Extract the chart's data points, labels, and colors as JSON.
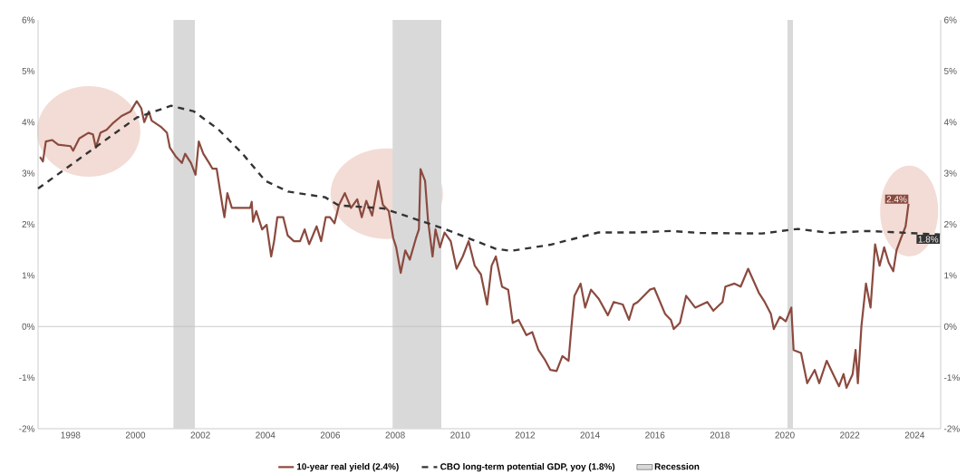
{
  "chart_data": {
    "type": "line",
    "xlim": [
      1997,
      2024.8
    ],
    "ylim": [
      -2,
      6
    ],
    "y2lim": [
      -2,
      6
    ],
    "xticks": [
      1998,
      2000,
      2002,
      2004,
      2006,
      2008,
      2010,
      2012,
      2014,
      2016,
      2018,
      2020,
      2022,
      2024
    ],
    "yticks": [
      {
        "value": -2,
        "label": "-2%"
      },
      {
        "value": -1,
        "label": "-1%"
      },
      {
        "value": 0,
        "label": "0%"
      },
      {
        "value": 1,
        "label": "1%"
      },
      {
        "value": 2,
        "label": "2%"
      },
      {
        "value": 3,
        "label": "3%"
      },
      {
        "value": 4,
        "label": "4%"
      },
      {
        "value": 5,
        "label": "5%"
      },
      {
        "value": 6,
        "label": "6%"
      }
    ],
    "y2ticks": [
      {
        "value": -2,
        "label": "-2%"
      },
      {
        "value": -1,
        "label": "-1%"
      },
      {
        "value": 0,
        "label": "0%"
      },
      {
        "value": 1,
        "label": "1%"
      },
      {
        "value": 2,
        "label": "2%"
      },
      {
        "value": 3,
        "label": "3%"
      },
      {
        "value": 4,
        "label": "4%"
      },
      {
        "value": 5,
        "label": "5%"
      },
      {
        "value": 6,
        "label": "6%"
      }
    ],
    "legend": "bottom",
    "series": [
      {
        "name": "10-year real yield (2.4%)",
        "color": "#8b4a3f",
        "line_style": "solid",
        "x": [
          1997.06,
          1997.15,
          1997.24,
          1997.43,
          1997.62,
          1998.0,
          1998.08,
          1998.27,
          1998.55,
          1998.69,
          1998.78,
          1998.92,
          1999.11,
          1999.29,
          1999.57,
          1999.85,
          2000.04,
          2000.18,
          2000.27,
          2000.41,
          2000.5,
          2000.78,
          2000.97,
          2001.06,
          2001.25,
          2001.43,
          2001.53,
          2001.71,
          2001.85,
          2001.95,
          2002.09,
          2002.27,
          2002.37,
          2002.5,
          2002.69,
          2002.74,
          2002.83,
          2002.97,
          2003.11,
          2003.53,
          2003.58,
          2003.62,
          2003.72,
          2003.9,
          2004.04,
          2004.18,
          2004.27,
          2004.37,
          2004.55,
          2004.69,
          2004.88,
          2005.07,
          2005.21,
          2005.35,
          2005.58,
          2005.72,
          2005.86,
          2005.99,
          2006.13,
          2006.27,
          2006.45,
          2006.64,
          2006.83,
          2006.97,
          2007.11,
          2007.29,
          2007.48,
          2007.62,
          2007.8,
          2007.94,
          2008.03,
          2008.17,
          2008.31,
          2008.45,
          2008.64,
          2008.73,
          2008.78,
          2008.92,
          2009.01,
          2009.15,
          2009.24,
          2009.38,
          2009.52,
          2009.71,
          2009.89,
          2010.08,
          2010.26,
          2010.45,
          2010.64,
          2010.83,
          2010.97,
          2011.1,
          2011.29,
          2011.48,
          2011.62,
          2011.8,
          2012.04,
          2012.22,
          2012.41,
          2012.6,
          2012.78,
          2012.97,
          2013.15,
          2013.34,
          2013.43,
          2013.52,
          2013.71,
          2013.85,
          2014.03,
          2014.27,
          2014.55,
          2014.73,
          2015.01,
          2015.2,
          2015.34,
          2015.47,
          2015.84,
          2015.98,
          2016.31,
          2016.49,
          2016.58,
          2016.77,
          2016.96,
          2017.24,
          2017.61,
          2017.8,
          2018.08,
          2018.17,
          2018.45,
          2018.64,
          2018.87,
          2019.2,
          2019.38,
          2019.57,
          2019.66,
          2019.85,
          2020.03,
          2020.2,
          2020.27,
          2020.5,
          2020.69,
          2020.92,
          2021.06,
          2021.29,
          2021.53,
          2021.67,
          2021.81,
          2021.9,
          2022.09,
          2022.18,
          2022.25,
          2022.36,
          2022.5,
          2022.64,
          2022.78,
          2022.92,
          2023.06,
          2023.2,
          2023.34,
          2023.44,
          2023.58,
          2023.72,
          2023.81
        ],
        "values": [
          3.32,
          3.23,
          3.62,
          3.65,
          3.56,
          3.53,
          3.44,
          3.68,
          3.79,
          3.76,
          3.5,
          3.79,
          3.85,
          3.97,
          4.12,
          4.21,
          4.41,
          4.27,
          4.0,
          4.21,
          4.03,
          3.91,
          3.79,
          3.5,
          3.32,
          3.2,
          3.38,
          3.2,
          2.97,
          3.62,
          3.38,
          3.2,
          3.09,
          3.09,
          2.32,
          2.14,
          2.61,
          2.32,
          2.32,
          2.32,
          2.44,
          2.05,
          2.26,
          1.9,
          1.99,
          1.37,
          1.67,
          2.14,
          2.14,
          1.78,
          1.67,
          1.67,
          1.9,
          1.61,
          1.96,
          1.67,
          2.14,
          2.14,
          2.02,
          2.38,
          2.61,
          2.32,
          2.49,
          2.14,
          2.46,
          2.17,
          2.85,
          2.38,
          2.26,
          1.73,
          1.55,
          1.05,
          1.49,
          1.31,
          1.73,
          1.9,
          3.08,
          2.85,
          2.08,
          1.37,
          1.9,
          1.55,
          1.84,
          1.67,
          1.13,
          1.37,
          1.67,
          1.19,
          1.02,
          0.43,
          1.19,
          1.37,
          0.78,
          0.72,
          0.07,
          0.13,
          -0.17,
          -0.11,
          -0.46,
          -0.64,
          -0.85,
          -0.87,
          -0.58,
          -0.67,
          0.01,
          0.6,
          0.84,
          0.37,
          0.72,
          0.54,
          0.22,
          0.48,
          0.43,
          0.13,
          0.43,
          0.48,
          0.72,
          0.75,
          0.25,
          0.13,
          -0.05,
          0.07,
          0.6,
          0.37,
          0.48,
          0.31,
          0.48,
          0.78,
          0.84,
          0.78,
          1.13,
          0.66,
          0.48,
          0.25,
          -0.05,
          0.19,
          0.1,
          0.37,
          -0.46,
          -0.52,
          -1.11,
          -0.85,
          -1.11,
          -0.67,
          -0.99,
          -1.17,
          -0.93,
          -1.2,
          -0.93,
          -0.46,
          -1.11,
          0.01,
          0.84,
          0.37,
          1.61,
          1.19,
          1.55,
          1.25,
          1.08,
          1.49,
          1.73,
          1.96,
          2.4
        ]
      },
      {
        "name": "CBO long-term potential GDP, yoy (1.8%)",
        "color": "#333333",
        "line_style": "dashed",
        "x": [
          1997.0,
          2000.04,
          2001.1,
          2001.8,
          2002.55,
          2003.3,
          2004.0,
          2004.7,
          2005.84,
          2006.26,
          2007.65,
          2009.52,
          2011.1,
          2011.56,
          2012.78,
          2014.26,
          2015.38,
          2016.5,
          2017.4,
          2019.3,
          2020.4,
          2021.4,
          2022.55,
          2024.78
        ],
        "values": [
          2.7,
          4.09,
          4.32,
          4.21,
          3.86,
          3.38,
          2.85,
          2.64,
          2.53,
          2.37,
          2.31,
          1.91,
          1.52,
          1.48,
          1.6,
          1.84,
          1.84,
          1.87,
          1.83,
          1.82,
          1.91,
          1.83,
          1.87,
          1.8
        ]
      }
    ],
    "bands": [
      {
        "axis": "x",
        "from": 2001.17,
        "to": 2001.83,
        "label": "Recession",
        "color": "#d9d9d9"
      },
      {
        "axis": "x",
        "from": 2007.92,
        "to": 2009.42,
        "color": "#d9d9d9"
      },
      {
        "axis": "x",
        "from": 2020.08,
        "to": 2020.25,
        "color": "#d9d9d9"
      }
    ],
    "ref_lines": [
      {
        "axis": "y",
        "value": 0,
        "color": "#bfbfbf"
      }
    ],
    "annotations": [
      {
        "text": "2.4%",
        "x": 2023.81,
        "y": 2.4
      },
      {
        "text": "1.8%",
        "x": 2024.78,
        "y": 1.8
      }
    ]
  }
}
